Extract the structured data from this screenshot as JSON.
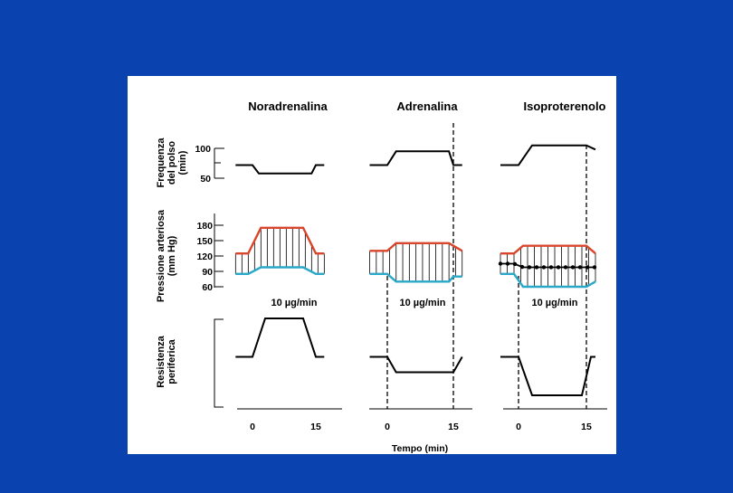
{
  "chart_data": {
    "type": "line",
    "drugs": [
      "Noradrenalina",
      "Adrenalina",
      "Isoproterenolo"
    ],
    "row_labels": {
      "heart_rate": [
        "Frequenza",
        "del polso",
        "(min)"
      ],
      "pressure": [
        "Pressione arteriosa",
        "(mm Hg)"
      ],
      "resistance": [
        "Resistenza",
        "periferica"
      ]
    },
    "heart_rate_ticks": [
      "100",
      "50"
    ],
    "pressure_ticks": [
      "180",
      "150",
      "120",
      "90",
      "60"
    ],
    "dose_labels": [
      "10 µg/min",
      "10 µg/min",
      "10 µg/min"
    ],
    "time_ticks": [
      "0",
      "15"
    ],
    "xlabel": "Tempo (min)",
    "infusion_minutes": [
      0,
      15
    ],
    "heart_rate": {
      "Noradrenalina": [
        [
          -4,
          72
        ],
        [
          0,
          72
        ],
        [
          1.5,
          58
        ],
        [
          14,
          58
        ],
        [
          15,
          72
        ],
        [
          17,
          72
        ]
      ],
      "Adrenalina": [
        [
          -4,
          72
        ],
        [
          0,
          72
        ],
        [
          2,
          95
        ],
        [
          14,
          95
        ],
        [
          15,
          72
        ],
        [
          17,
          72
        ]
      ],
      "Isoproterenolo": [
        [
          -4,
          72
        ],
        [
          0,
          72
        ],
        [
          3,
          105
        ],
        [
          14,
          105
        ],
        [
          15,
          105
        ],
        [
          17,
          98
        ]
      ]
    },
    "systolic": {
      "Noradrenalina": [
        [
          -4,
          125
        ],
        [
          -1,
          125
        ],
        [
          2,
          175
        ],
        [
          12,
          175
        ],
        [
          15,
          125
        ],
        [
          17,
          125
        ]
      ],
      "Adrenalina": [
        [
          -4,
          130
        ],
        [
          0,
          130
        ],
        [
          2,
          145
        ],
        [
          14,
          145
        ],
        [
          15,
          140
        ],
        [
          17,
          130
        ]
      ],
      "Isoproterenolo": [
        [
          -4,
          125
        ],
        [
          -1,
          125
        ],
        [
          1,
          140
        ],
        [
          14,
          140
        ],
        [
          15,
          140
        ],
        [
          17,
          125
        ]
      ]
    },
    "diastolic": {
      "Noradrenalina": [
        [
          -4,
          85
        ],
        [
          -1,
          85
        ],
        [
          2,
          98
        ],
        [
          12,
          98
        ],
        [
          15,
          85
        ],
        [
          17,
          85
        ]
      ],
      "Adrenalina": [
        [
          -4,
          85
        ],
        [
          0,
          85
        ],
        [
          2,
          70
        ],
        [
          14,
          70
        ],
        [
          15,
          80
        ],
        [
          17,
          80
        ]
      ],
      "Isoproterenolo": [
        [
          -4,
          85
        ],
        [
          -1,
          85
        ],
        [
          1,
          60
        ],
        [
          14,
          60
        ],
        [
          15,
          60
        ],
        [
          17,
          70
        ]
      ]
    },
    "mean_pressure_isoproterenolo": [
      [
        -4,
        105
      ],
      [
        -1,
        105
      ],
      [
        1,
        98
      ],
      [
        17,
        98
      ]
    ],
    "peripheral_resistance_relative": {
      "Noradrenalina": [
        [
          -4,
          0.5
        ],
        [
          0,
          0.5
        ],
        [
          3,
          1.0
        ],
        [
          12,
          1.0
        ],
        [
          15,
          0.5
        ],
        [
          17,
          0.5
        ]
      ],
      "Adrenalina": [
        [
          -4,
          0.5
        ],
        [
          0,
          0.5
        ],
        [
          2,
          0.3
        ],
        [
          14,
          0.3
        ],
        [
          15,
          0.3
        ],
        [
          17,
          0.5
        ]
      ],
      "Isoproterenolo": [
        [
          -4,
          0.5
        ],
        [
          0,
          0.5
        ],
        [
          3,
          0.0
        ],
        [
          14,
          0.0
        ],
        [
          16,
          0.5
        ],
        [
          17,
          0.5
        ]
      ]
    },
    "colors": {
      "systolic": "#d9462b",
      "diastolic": "#2aa8c8",
      "trace": "#000000",
      "slide_bg": "#0a42b0",
      "panel_bg": "#ffffff"
    }
  }
}
